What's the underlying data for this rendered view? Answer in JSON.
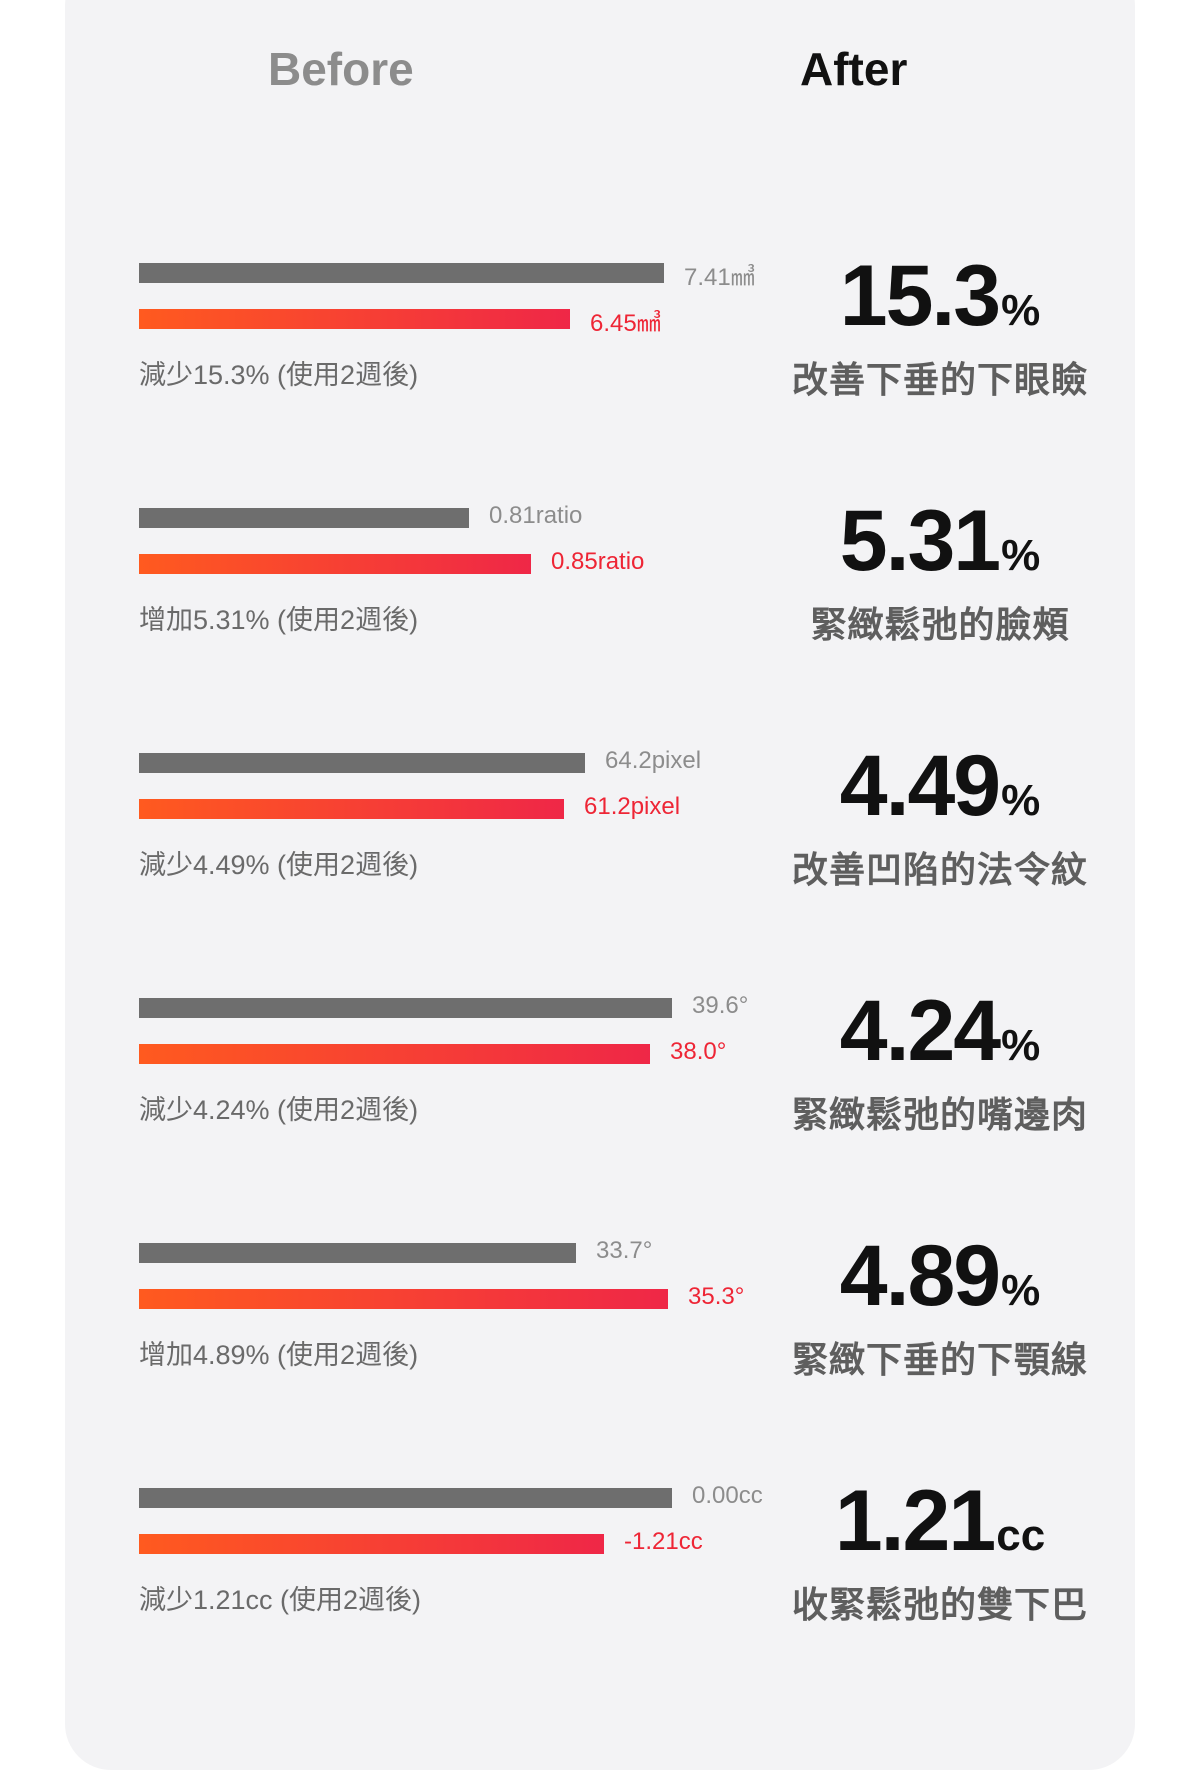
{
  "header": {
    "before": "Before",
    "after": "After"
  },
  "chart_data": {
    "type": "bar",
    "series": [
      {
        "name": "Before"
      },
      {
        "name": "After"
      }
    ],
    "metrics": [
      {
        "before_value": 7.41,
        "before_label": "7.41㎣",
        "after_value": 6.45,
        "after_label": "6.45㎣",
        "caption": "減少15.3% (使用2週後)",
        "big_value": "15.3",
        "big_unit": "%",
        "description": "改善下垂的下眼瞼"
      },
      {
        "before_value": 0.81,
        "before_label": "0.81ratio",
        "after_value": 0.85,
        "after_label": "0.85ratio",
        "caption": "增加5.31% (使用2週後)",
        "big_value": "5.31",
        "big_unit": "%",
        "description": "緊緻鬆弛的臉頰"
      },
      {
        "before_value": 64.2,
        "before_label": "64.2pixel",
        "after_value": 61.2,
        "after_label": "61.2pixel",
        "caption": "減少4.49% (使用2週後)",
        "big_value": "4.49",
        "big_unit": "%",
        "description": "改善凹陷的法令紋"
      },
      {
        "before_value": 39.6,
        "before_label": "39.6°",
        "after_value": 38.0,
        "after_label": "38.0°",
        "caption": "減少4.24% (使用2週後)",
        "big_value": "4.24",
        "big_unit": "%",
        "description": "緊緻鬆弛的嘴邊肉"
      },
      {
        "before_value": 33.7,
        "before_label": "33.7°",
        "after_value": 35.3,
        "after_label": "35.3°",
        "caption": "增加4.89% (使用2週後)",
        "big_value": "4.89",
        "big_unit": "%",
        "description": "緊緻下垂的下顎線"
      },
      {
        "before_value": 0.0,
        "before_label": "0.00cc",
        "after_value": -1.21,
        "after_label": "-1.21cc",
        "caption": "減少1.21cc (使用2週後)",
        "big_value": "1.21",
        "big_unit": "cc",
        "description": "收緊鬆弛的雙下巴"
      }
    ]
  },
  "colors": {
    "card": "#f3f3f5",
    "before_bar": "#6e6e6e",
    "after_bar_start": "#ff5a1f",
    "after_bar_end": "#ef2747",
    "after_label": "#ee2535"
  }
}
